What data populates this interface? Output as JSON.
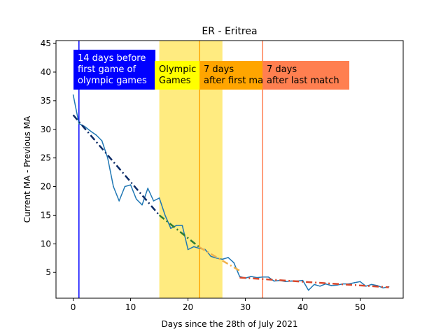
{
  "chart_data": {
    "type": "line",
    "title": "ER - Eritrea",
    "xlabel": "Days since the 28th of July 2021",
    "ylabel": "Current MA - Previous MA",
    "xlim": [
      -3,
      57.5
    ],
    "ylim": [
      0.5,
      45.5
    ],
    "xticks": [
      0,
      10,
      20,
      30,
      40,
      50
    ],
    "yticks": [
      5,
      10,
      15,
      20,
      25,
      30,
      35,
      40,
      45
    ],
    "grid": false,
    "colors": {
      "series": "#1f77b4",
      "olympic_band": "#ffeb80",
      "line_pre": "#0000ff",
      "line_first": "#ffa500",
      "line_last": "#ff7f50",
      "trend_pre": "#0b2a66",
      "trend_olympic": "#2e7d32",
      "trend_after_first": "#f0b14a",
      "trend_after_last": "#d9472b"
    },
    "olympic_band": {
      "x_start": 15,
      "x_end": 26
    },
    "vlines": [
      {
        "name": "pre-olympics",
        "x": 1,
        "color": "#0000ff"
      },
      {
        "name": "after-first-match",
        "x": 22,
        "color": "#ffa500"
      },
      {
        "name": "after-last-match",
        "x": 33,
        "color": "#ff7f50"
      }
    ],
    "annotations": [
      {
        "name": "label-14-days-before",
        "lines": [
          "14 days before",
          "first game of",
          "olympic games"
        ],
        "bg": "#0000ff",
        "text_color": "#ffffff"
      },
      {
        "name": "label-olympic-games",
        "lines": [
          "Olympic",
          "Games"
        ],
        "bg": "#ffff00",
        "text_color": "#000000"
      },
      {
        "name": "label-7-days-after-first",
        "lines": [
          "7 days",
          "after first match"
        ],
        "bg": "#ffa500",
        "text_color": "#000000"
      },
      {
        "name": "label-7-days-after-last",
        "lines": [
          "7 days",
          "after last match"
        ],
        "bg": "#ff7f50",
        "text_color": "#000000"
      }
    ],
    "series": [
      {
        "name": "Current MA - Previous MA",
        "x": [
          0,
          1,
          2,
          3,
          4,
          5,
          6,
          7,
          8,
          9,
          10,
          11,
          12,
          13,
          14,
          15,
          16,
          17,
          18,
          19,
          20,
          21,
          22,
          23,
          24,
          25,
          26,
          27,
          28,
          29,
          30,
          31,
          32,
          33,
          34,
          35,
          36,
          37,
          38,
          39,
          40,
          41,
          42,
          43,
          44,
          45,
          46,
          47,
          48,
          49,
          50,
          51,
          52,
          53,
          54,
          55
        ],
        "values": [
          36,
          31,
          30.5,
          29.7,
          29,
          28,
          25,
          20,
          17.5,
          20,
          20.3,
          17.8,
          16.8,
          19.7,
          17.5,
          18,
          15,
          12.7,
          13.2,
          13.2,
          9,
          9.5,
          9.2,
          9,
          7.8,
          7.5,
          7.3,
          7.6,
          6.7,
          4.3,
          4,
          4.3,
          4.1,
          4.2,
          4.2,
          3.5,
          3.6,
          3.4,
          3.5,
          3.5,
          3.6,
          1.9,
          2.9,
          2.6,
          3,
          2.7,
          2.8,
          3,
          3,
          3.2,
          3.4,
          2.6,
          2.9,
          2.7,
          2.3,
          2.5
        ]
      }
    ],
    "trendlines": [
      {
        "name": "trend-pre-olympics",
        "x": [
          0,
          15
        ],
        "y": [
          32.5,
          15
        ],
        "color": "#0b2a66"
      },
      {
        "name": "trend-olympics",
        "x": [
          15,
          22
        ],
        "y": [
          15,
          9.4
        ],
        "color": "#2e7d32"
      },
      {
        "name": "trend-after-first-match",
        "x": [
          22,
          29
        ],
        "y": [
          9.4,
          5.3
        ],
        "color": "#f0b14a"
      },
      {
        "name": "trend-after-last-match",
        "x": [
          29,
          55
        ],
        "y": [
          4.1,
          2.4
        ],
        "color": "#d9472b"
      }
    ]
  }
}
